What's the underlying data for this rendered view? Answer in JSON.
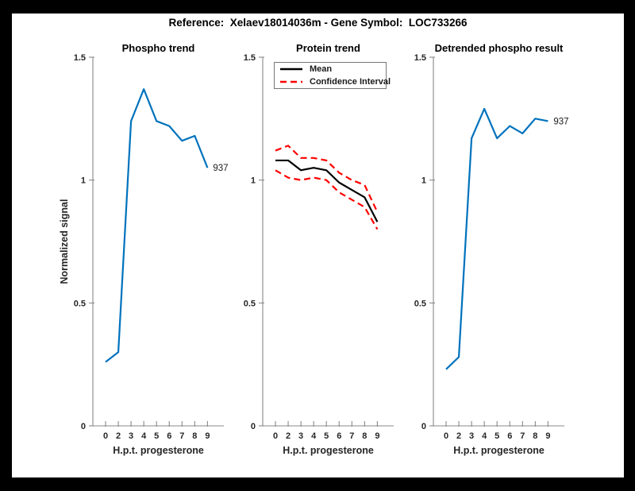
{
  "figure": {
    "title": "Reference:  Xelaev18014036m - Gene Symbol:  LOC733266",
    "ylabel": "Normalized signal",
    "frame_color": "#000000",
    "canvas_color": "#ffffff",
    "axis_color": "#888888",
    "tick_label_color": "#262626"
  },
  "chart_data": [
    {
      "type": "line",
      "title": "Phospho trend",
      "xlabel": "H.p.t. progesterone",
      "ylabel": "Normalized signal",
      "x_ticklabels": [
        "0",
        "2",
        "3",
        "4",
        "5",
        "6",
        "7",
        "8",
        "9"
      ],
      "y_ticks": [
        0,
        0.5,
        1,
        1.5
      ],
      "y_ticklabels": [
        "0",
        "0.5",
        "1",
        "1.5"
      ],
      "ylim": [
        0,
        1.5
      ],
      "grid": false,
      "series": [
        {
          "name": "937",
          "color": "#0072BD",
          "style": "solid",
          "end_label": "937",
          "values": [
            0.26,
            0.3,
            1.24,
            1.37,
            1.24,
            1.22,
            1.16,
            1.18,
            1.05
          ]
        }
      ]
    },
    {
      "type": "line",
      "title": "Protein trend",
      "xlabel": "H.p.t. progesterone",
      "x_ticklabels": [
        "0",
        "2",
        "3",
        "4",
        "5",
        "6",
        "7",
        "8",
        "9"
      ],
      "y_ticks": [
        0,
        0.5,
        1,
        1.5
      ],
      "y_ticklabels": [
        "0",
        "0.5",
        "1",
        "1.5"
      ],
      "ylim": [
        0,
        1.5
      ],
      "grid": false,
      "legend": [
        "Mean",
        "Confidence Interval"
      ],
      "legend_position": "top-left",
      "series": [
        {
          "name": "Mean",
          "color": "#000000",
          "style": "solid",
          "values": [
            1.08,
            1.08,
            1.04,
            1.05,
            1.04,
            0.99,
            0.96,
            0.93,
            0.83
          ]
        },
        {
          "name": "Confidence Interval (upper)",
          "color": "#ff0000",
          "style": "dashed",
          "values": [
            1.12,
            1.14,
            1.09,
            1.09,
            1.08,
            1.03,
            1.0,
            0.98,
            0.87
          ]
        },
        {
          "name": "Confidence Interval (lower)",
          "color": "#ff0000",
          "style": "dashed",
          "values": [
            1.04,
            1.01,
            1.0,
            1.01,
            1.0,
            0.95,
            0.92,
            0.89,
            0.8
          ]
        }
      ]
    },
    {
      "type": "line",
      "title": "Detrended phospho result",
      "xlabel": "H.p.t. progesterone",
      "x_ticklabels": [
        "0",
        "2",
        "3",
        "4",
        "5",
        "6",
        "7",
        "8",
        "9"
      ],
      "y_ticks": [
        0,
        0.5,
        1,
        1.5
      ],
      "y_ticklabels": [
        "0",
        "0.5",
        "1",
        "1.5"
      ],
      "ylim": [
        0,
        1.5
      ],
      "grid": false,
      "series": [
        {
          "name": "937",
          "color": "#0072BD",
          "style": "solid",
          "end_label": "937",
          "values": [
            0.23,
            0.28,
            1.17,
            1.29,
            1.17,
            1.22,
            1.19,
            1.25,
            1.24
          ]
        }
      ]
    }
  ]
}
